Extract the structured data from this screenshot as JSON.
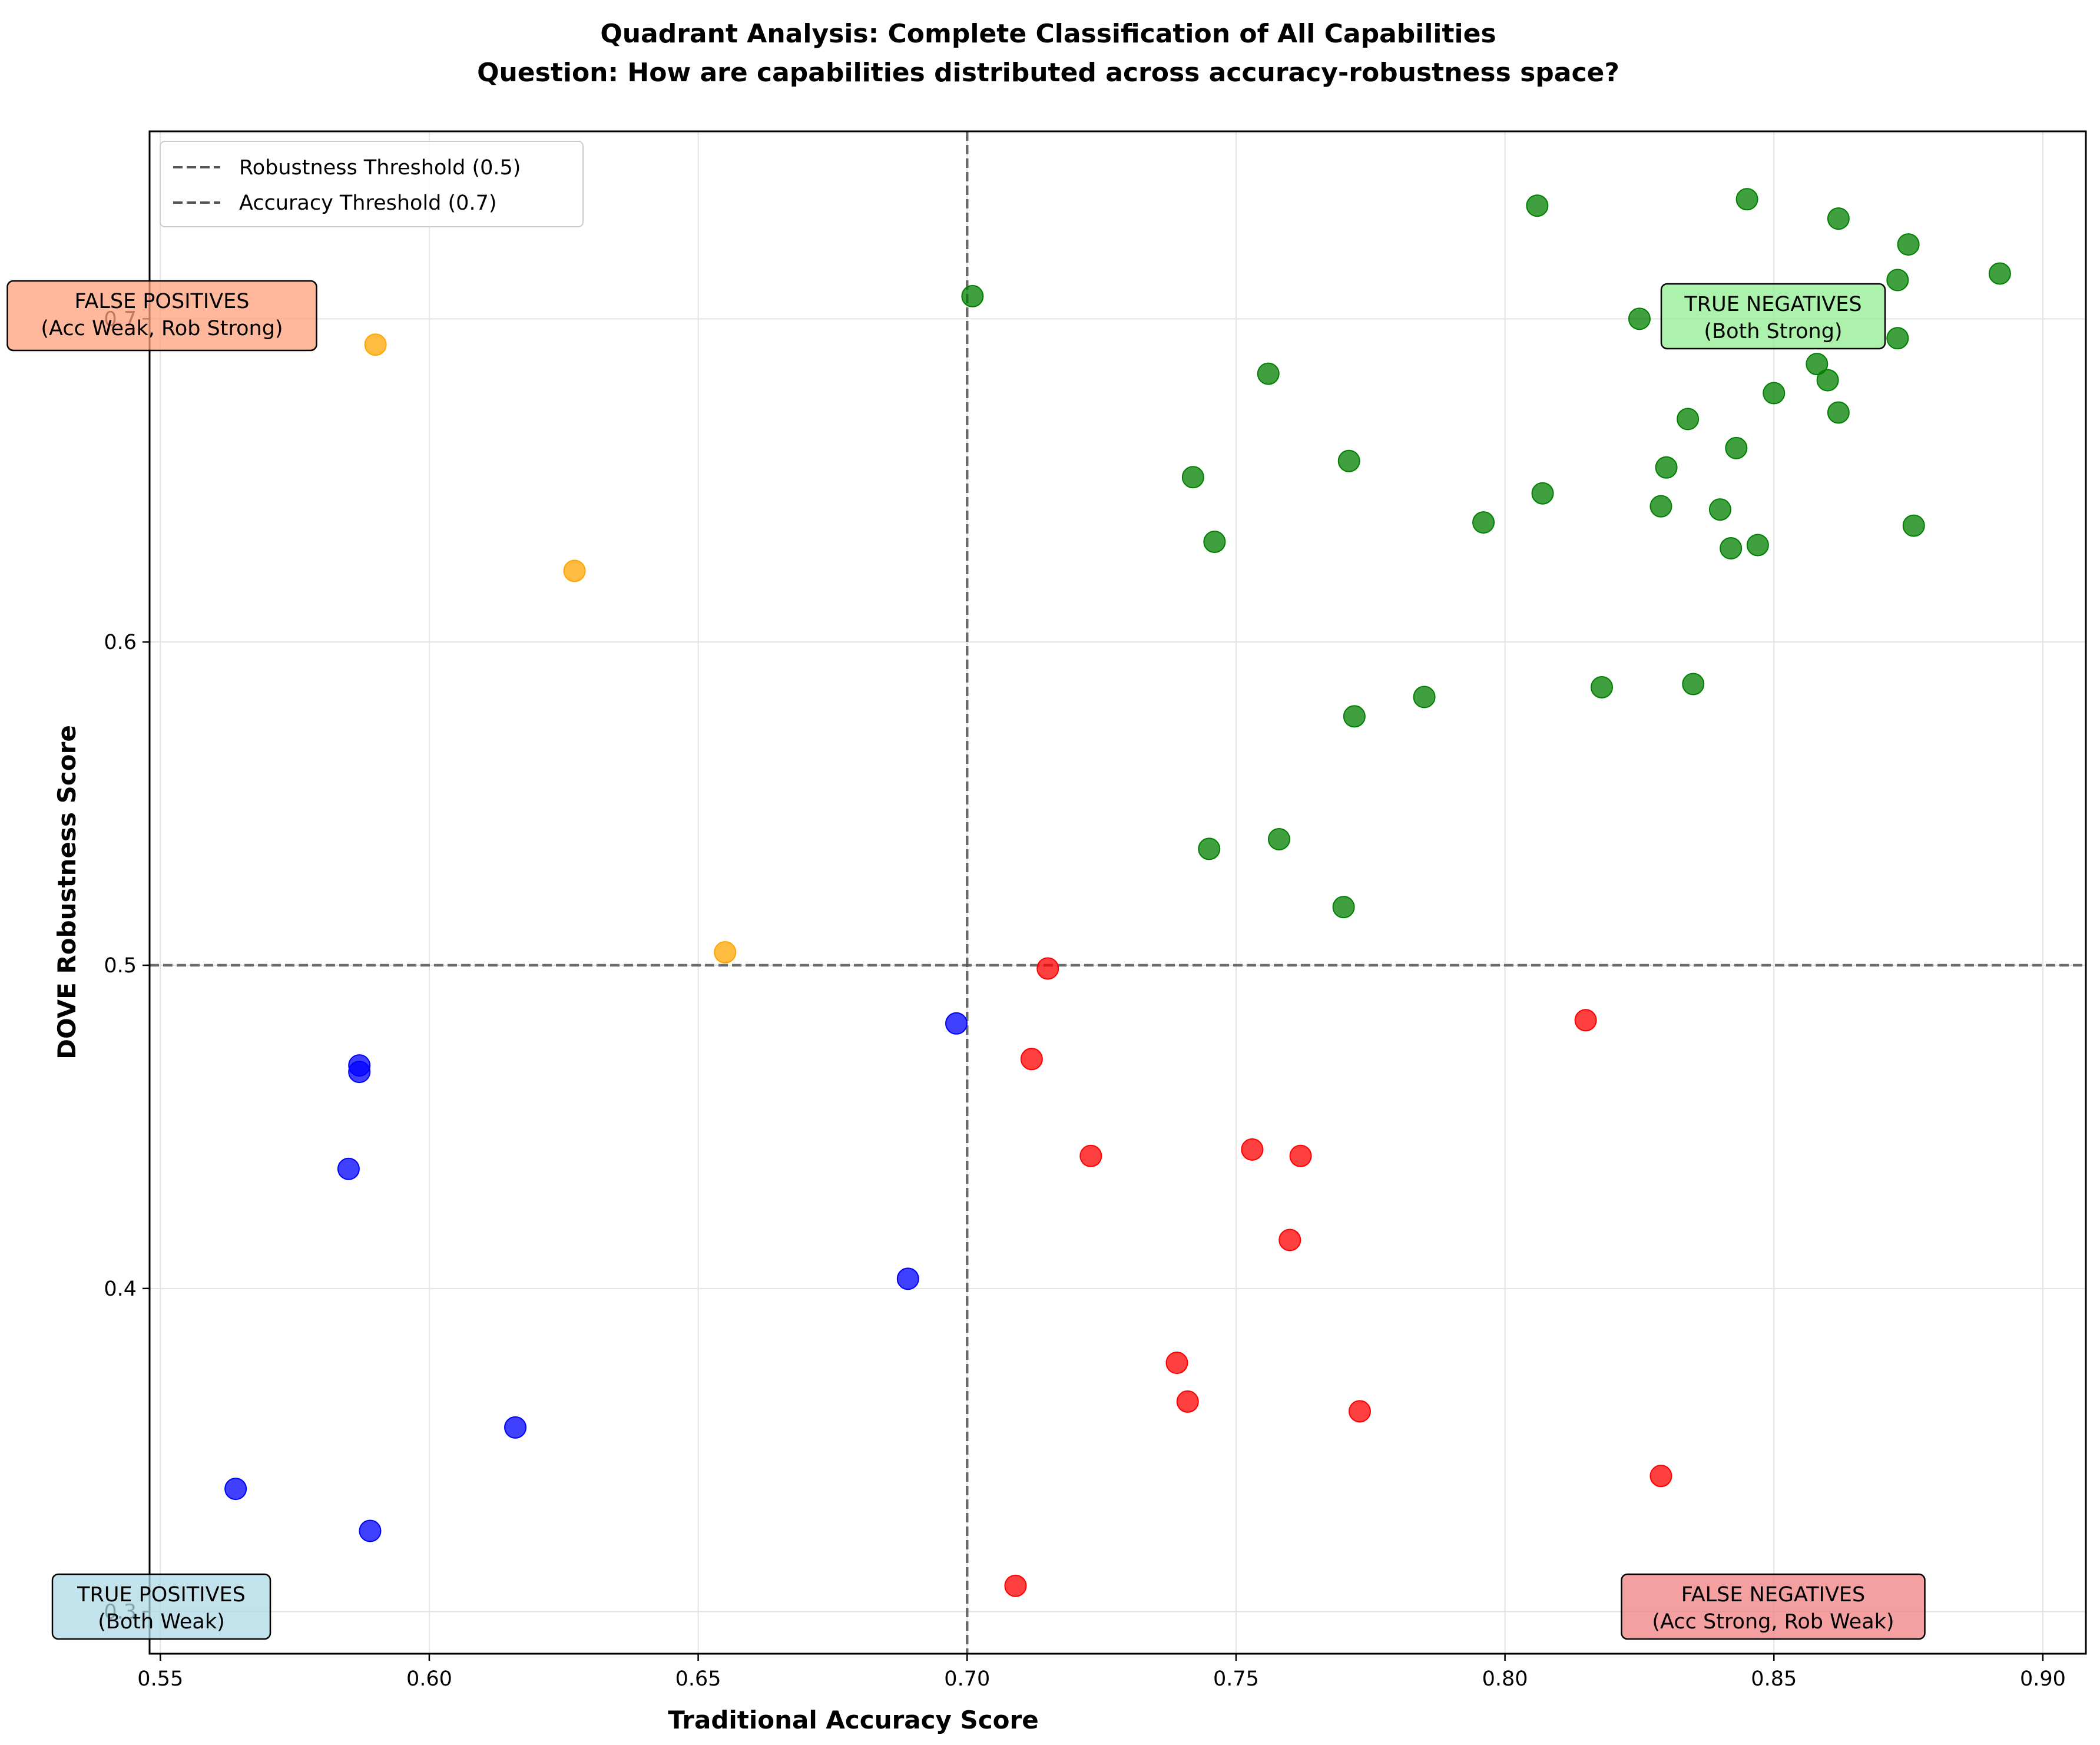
{
  "chart_data": {
    "type": "scatter",
    "title": "Quadrant Analysis: Complete Classification of All Capabilities",
    "subtitle": "Question: How are capabilities distributed across accuracy-robustness space?",
    "xlabel": "Traditional Accuracy Score",
    "ylabel": "DOVE Robustness Score",
    "xlim": [
      0.548,
      0.908
    ],
    "ylim": [
      0.287,
      0.758
    ],
    "x_ticks": [
      "0.55",
      "0.60",
      "0.65",
      "0.70",
      "0.75",
      "0.80",
      "0.85",
      "0.90"
    ],
    "x_tick_values": [
      0.55,
      0.6,
      0.65,
      0.7,
      0.75,
      0.8,
      0.85,
      0.9
    ],
    "y_ticks": [
      "0.3",
      "0.4",
      "0.5",
      "0.6",
      "0.7"
    ],
    "y_tick_values": [
      0.3,
      0.4,
      0.5,
      0.6,
      0.7
    ],
    "grid": true,
    "legend_position": "top-left",
    "thresholds": [
      {
        "label": "Robustness Threshold (0.5)",
        "axis": "y",
        "value": 0.5
      },
      {
        "label": "Accuracy Threshold (0.7)",
        "axis": "x",
        "value": 0.7
      }
    ],
    "quadrants": [
      {
        "line1": "FALSE POSITIVES",
        "line2": "(Acc Weak, Rob Strong)",
        "position": "top-left",
        "color": "#ffa07a"
      },
      {
        "line1": "TRUE NEGATIVES",
        "line2": "(Both Strong)",
        "position": "top-right",
        "color": "#90ee90"
      },
      {
        "line1": "TRUE POSITIVES",
        "line2": "(Both Weak)",
        "position": "bottom-left",
        "color": "#add8e6"
      },
      {
        "line1": "FALSE NEGATIVES",
        "line2": "(Acc Strong, Rob Weak)",
        "position": "bottom-right",
        "color": "#f08080"
      }
    ],
    "series": [
      {
        "color": "#008000",
        "points": [
          [
            0.806,
            0.735
          ],
          [
            0.845,
            0.737
          ],
          [
            0.862,
            0.731
          ],
          [
            0.875,
            0.723
          ],
          [
            0.892,
            0.714
          ],
          [
            0.873,
            0.712
          ],
          [
            0.701,
            0.707
          ],
          [
            0.825,
            0.7
          ],
          [
            0.873,
            0.694
          ],
          [
            0.756,
            0.683
          ],
          [
            0.858,
            0.686
          ],
          [
            0.86,
            0.681
          ],
          [
            0.85,
            0.677
          ],
          [
            0.862,
            0.671
          ],
          [
            0.834,
            0.669
          ],
          [
            0.843,
            0.66
          ],
          [
            0.771,
            0.656
          ],
          [
            0.83,
            0.654
          ],
          [
            0.742,
            0.651
          ],
          [
            0.807,
            0.646
          ],
          [
            0.829,
            0.642
          ],
          [
            0.84,
            0.641
          ],
          [
            0.796,
            0.637
          ],
          [
            0.876,
            0.636
          ],
          [
            0.746,
            0.631
          ],
          [
            0.847,
            0.63
          ],
          [
            0.842,
            0.629
          ],
          [
            0.785,
            0.583
          ],
          [
            0.818,
            0.586
          ],
          [
            0.835,
            0.587
          ],
          [
            0.772,
            0.577
          ],
          [
            0.745,
            0.536
          ],
          [
            0.758,
            0.539
          ],
          [
            0.77,
            0.518
          ]
        ]
      },
      {
        "color": "#ffa500",
        "points": [
          [
            0.59,
            0.692
          ],
          [
            0.627,
            0.622
          ],
          [
            0.655,
            0.504
          ]
        ]
      },
      {
        "color": "#0000ff",
        "points": [
          [
            0.698,
            0.482
          ],
          [
            0.587,
            0.469
          ],
          [
            0.587,
            0.467
          ],
          [
            0.585,
            0.437
          ],
          [
            0.689,
            0.403
          ],
          [
            0.616,
            0.357
          ],
          [
            0.564,
            0.338
          ],
          [
            0.589,
            0.325
          ]
        ]
      },
      {
        "color": "#ff0000",
        "points": [
          [
            0.715,
            0.499
          ],
          [
            0.815,
            0.483
          ],
          [
            0.712,
            0.471
          ],
          [
            0.723,
            0.441
          ],
          [
            0.753,
            0.443
          ],
          [
            0.762,
            0.441
          ],
          [
            0.76,
            0.415
          ],
          [
            0.739,
            0.377
          ],
          [
            0.741,
            0.365
          ],
          [
            0.773,
            0.362
          ],
          [
            0.829,
            0.342
          ],
          [
            0.709,
            0.308
          ]
        ]
      }
    ]
  }
}
